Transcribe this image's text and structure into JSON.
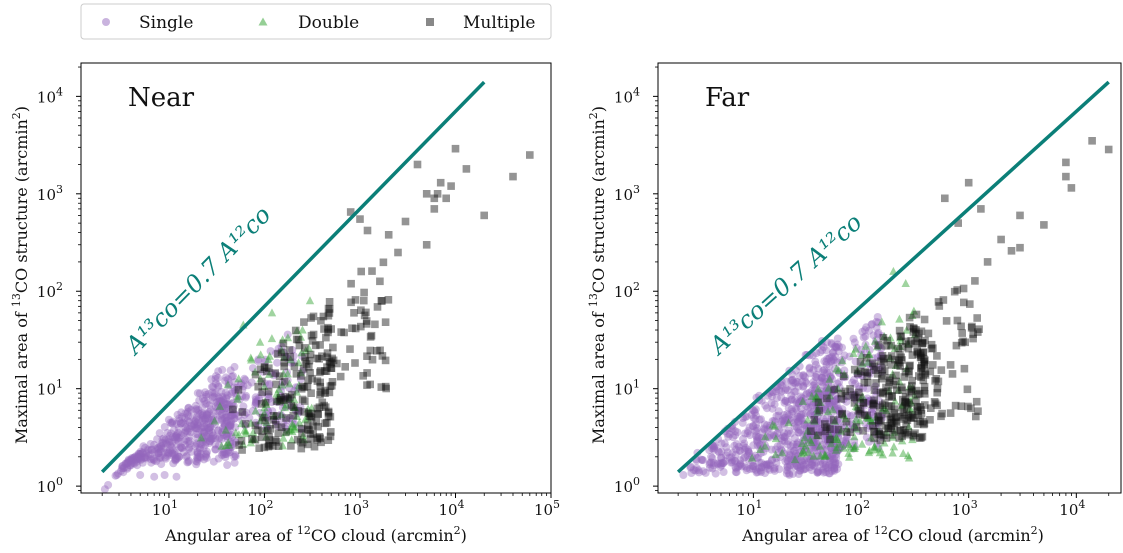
{
  "colors": {
    "single": "#9467bd",
    "double": "#2ca02c",
    "multiple": "#111111",
    "relation_line": "#0b7f78"
  },
  "legend": {
    "placement": "top-left, above plots",
    "items": [
      {
        "label": "Single",
        "marker": "circle",
        "color_key": "single"
      },
      {
        "label": "Double",
        "marker": "triangle",
        "color_key": "double"
      },
      {
        "label": "Multiple",
        "marker": "square",
        "color_key": "multiple"
      }
    ]
  },
  "shared": {
    "xlabel_pre": "Angular area of ",
    "xlabel_sup": "12",
    "xlabel_post": "CO cloud (arcmin",
    "xlabel_sup2": "2",
    "xlabel_end": ")",
    "ylabel_pre": "Maximal area of ",
    "ylabel_sup": "13",
    "ylabel_post": "CO structure (arcmin",
    "ylabel_sup2": "2",
    "ylabel_end": ")",
    "relation_text": "A¹³co=0.7 A¹²co"
  },
  "chart_data": [
    {
      "type": "scatter",
      "panel_label": "Near",
      "xscale": "log",
      "yscale": "log",
      "xlim": [
        1.2,
        100000
      ],
      "ylim": [
        0.85,
        22000
      ],
      "xticks": [
        {
          "v": 10,
          "b": "10",
          "e": "1"
        },
        {
          "v": 100,
          "b": "10",
          "e": "2"
        },
        {
          "v": 1000,
          "b": "10",
          "e": "3"
        },
        {
          "v": 10000,
          "b": "10",
          "e": "4"
        },
        {
          "v": 100000,
          "b": "10",
          "e": "5"
        }
      ],
      "yticks": [
        {
          "v": 1,
          "b": "10",
          "e": "0"
        },
        {
          "v": 10,
          "b": "10",
          "e": "1"
        },
        {
          "v": 100,
          "b": "10",
          "e": "2"
        },
        {
          "v": 1000,
          "b": "10",
          "e": "3"
        },
        {
          "v": 10000,
          "b": "10",
          "e": "4"
        }
      ],
      "relation": {
        "coef": 0.7,
        "x": [
          2,
          20000
        ]
      },
      "relation_label_at": [
        4.5,
        22
      ],
      "series": [
        {
          "name": "Single",
          "marker": "circle",
          "clusters": [
            {
              "n": 420,
              "lx": [
                0.3,
                1.7
              ],
              "ly": [
                0.25,
                1.2
              ],
              "maxRatio": 0.45,
              "seed": 11
            },
            {
              "n": 160,
              "lx": [
                1.0,
                2.4
              ],
              "ly": [
                0.6,
                1.55
              ],
              "maxRatio": 0.25,
              "seed": 12
            }
          ],
          "points": [
            [
              5,
              1.3
            ],
            [
              7,
              1.25
            ],
            [
              9,
              1.3
            ],
            [
              12,
              1.25
            ],
            [
              8,
              3.5
            ],
            [
              10,
              4.8
            ]
          ]
        },
        {
          "name": "Double",
          "marker": "triangle",
          "clusters": [
            {
              "n": 95,
              "lx": [
                1.3,
                2.5
              ],
              "ly": [
                0.4,
                1.6
              ],
              "maxRatio": 0.3,
              "seed": 21
            }
          ],
          "points": [
            [
              60,
              45
            ],
            [
              90,
              30
            ],
            [
              120,
              60
            ],
            [
              250,
              40
            ],
            [
              300,
              80
            ]
          ]
        },
        {
          "name": "Multiple",
          "marker": "square",
          "clusters": [
            {
              "n": 170,
              "lx": [
                1.6,
                2.7
              ],
              "ly": [
                0.4,
                1.9
              ],
              "maxRatio": 0.2,
              "seed": 31
            },
            {
              "n": 70,
              "lx": [
                2.3,
                3.3
              ],
              "ly": [
                1.0,
                2.5
              ],
              "maxRatio": 0.15,
              "seed": 32
            }
          ],
          "points": [
            [
              800,
              650
            ],
            [
              1000,
              550
            ],
            [
              1200,
              420
            ],
            [
              2000,
              380
            ],
            [
              2500,
              250
            ],
            [
              3000,
              520
            ],
            [
              5000,
              300
            ],
            [
              6000,
              700
            ],
            [
              6000,
              900
            ],
            [
              6500,
              1000
            ],
            [
              7000,
              1300
            ],
            [
              8000,
              900
            ],
            [
              9000,
              1200
            ],
            [
              10000,
              2900
            ],
            [
              13000,
              1800
            ],
            [
              20000,
              600
            ],
            [
              40000,
              1500
            ],
            [
              60000,
              2500
            ],
            [
              5000,
              1000
            ],
            [
              4000,
              2000
            ]
          ]
        }
      ]
    },
    {
      "type": "scatter",
      "panel_label": "Far",
      "xscale": "log",
      "yscale": "log",
      "xlim": [
        1.3,
        26000
      ],
      "ylim": [
        0.85,
        22000
      ],
      "xticks": [
        {
          "v": 10,
          "b": "10",
          "e": "1"
        },
        {
          "v": 100,
          "b": "10",
          "e": "2"
        },
        {
          "v": 1000,
          "b": "10",
          "e": "3"
        },
        {
          "v": 10000,
          "b": "10",
          "e": "4"
        }
      ],
      "yticks": [
        {
          "v": 1,
          "b": "10",
          "e": "0"
        },
        {
          "v": 10,
          "b": "10",
          "e": "1"
        },
        {
          "v": 100,
          "b": "10",
          "e": "2"
        },
        {
          "v": 1000,
          "b": "10",
          "e": "3"
        },
        {
          "v": 10000,
          "b": "10",
          "e": "4"
        }
      ],
      "relation": {
        "coef": 0.7,
        "x": [
          2,
          20000
        ]
      },
      "relation_label_at": [
        4.8,
        22
      ],
      "series": [
        {
          "name": "Single",
          "marker": "circle",
          "clusters": [
            {
              "n": 650,
              "lx": [
                0.3,
                1.8
              ],
              "ly": [
                0.15,
                1.5
              ],
              "maxRatio": 0.7,
              "seed": 41
            },
            {
              "n": 230,
              "lx": [
                1.2,
                2.2
              ],
              "ly": [
                0.4,
                1.9
              ],
              "maxRatio": 0.4,
              "seed": 42
            }
          ],
          "points": [
            [
              40,
              1.4
            ],
            [
              30,
              1.5
            ],
            [
              60,
              1.5
            ]
          ]
        },
        {
          "name": "Double",
          "marker": "triangle",
          "clusters": [
            {
              "n": 150,
              "lx": [
                0.9,
                2.5
              ],
              "ly": [
                0.3,
                2.3
              ],
              "maxRatio": 0.3,
              "seed": 51
            }
          ],
          "points": [
            [
              260,
              120
            ],
            [
              200,
              160
            ],
            [
              150,
              2.2
            ],
            [
              300,
              3
            ],
            [
              120,
              2.3
            ]
          ]
        },
        {
          "name": "Multiple",
          "marker": "square",
          "clusters": [
            {
              "n": 230,
              "lx": [
                1.5,
                2.6
              ],
              "ly": [
                0.5,
                2.4
              ],
              "maxRatio": 0.2,
              "seed": 61
            },
            {
              "n": 80,
              "lx": [
                2.0,
                3.1
              ],
              "ly": [
                0.7,
                2.6
              ],
              "maxRatio": 0.15,
              "seed": 62
            }
          ],
          "points": [
            [
              600,
              900
            ],
            [
              800,
              500
            ],
            [
              1000,
              1300
            ],
            [
              1300,
              700
            ],
            [
              2000,
              340
            ],
            [
              2500,
              260
            ],
            [
              3000,
              280
            ],
            [
              5000,
              480
            ],
            [
              8000,
              1500
            ],
            [
              8000,
              2100
            ],
            [
              9000,
              1150
            ],
            [
              14000,
              3500
            ],
            [
              20000,
              2850
            ],
            [
              3000,
              600
            ],
            [
              1500,
              200
            ]
          ]
        }
      ]
    }
  ]
}
